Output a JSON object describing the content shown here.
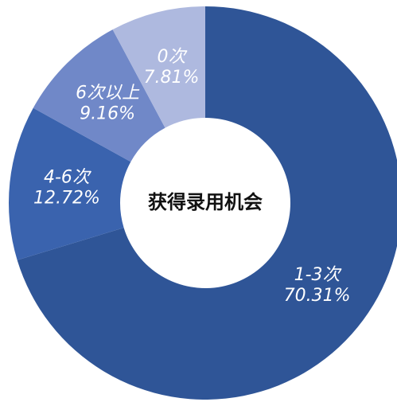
{
  "chart_data": {
    "type": "donut",
    "title": "获得录用机会",
    "categories": [
      "1-3次",
      "4-6次",
      "6次以上",
      "0次"
    ],
    "values": [
      70.31,
      12.72,
      9.16,
      7.81
    ],
    "value_labels": [
      "70.31%",
      "12.72%",
      "9.16%",
      "7.81%"
    ],
    "colors": [
      "#2f5597",
      "#3a63ae",
      "#7088c8",
      "#aeb9df"
    ]
  }
}
